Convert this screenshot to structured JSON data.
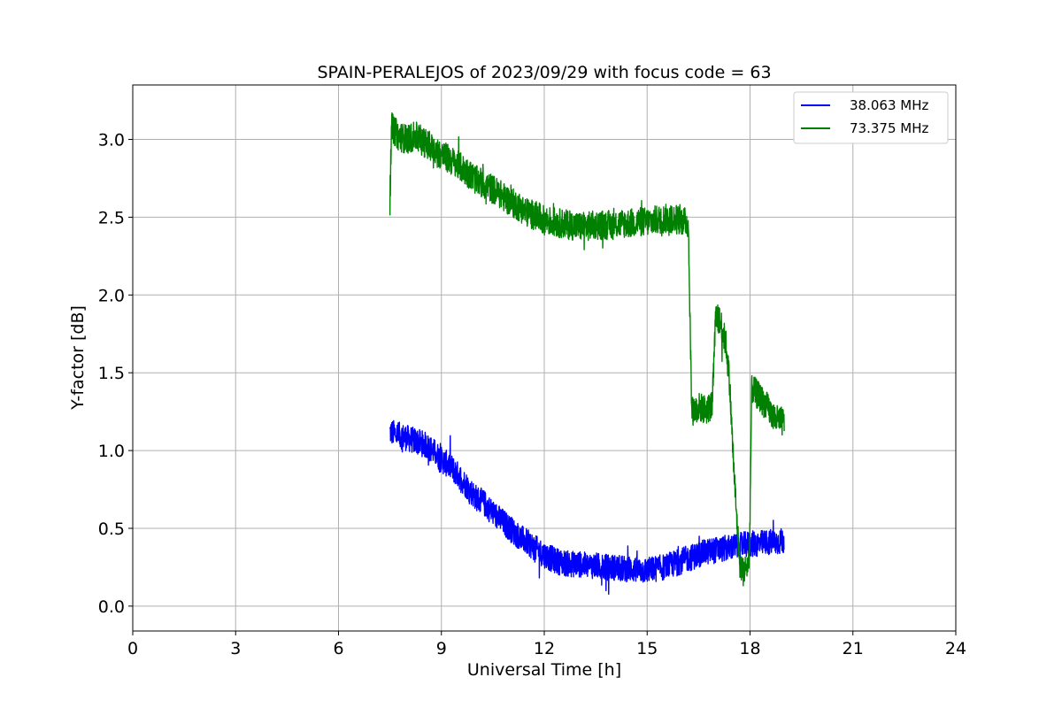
{
  "chart_data": {
    "type": "line",
    "title": "SPAIN-PERALEJOS of 2023/09/29 with focus code = 63",
    "xlabel": "Universal Time [h]",
    "ylabel": "Y-factor [dB]",
    "xlim": [
      0,
      24
    ],
    "ylim": [
      -0.16,
      3.35
    ],
    "xticks": [
      0,
      3,
      6,
      9,
      12,
      15,
      18,
      21,
      24
    ],
    "xtick_labels": [
      "0",
      "3",
      "6",
      "9",
      "12",
      "15",
      "18",
      "21",
      "24"
    ],
    "yticks": [
      0.0,
      0.5,
      1.0,
      1.5,
      2.0,
      2.5,
      3.0
    ],
    "ytick_labels": [
      "0.0",
      "0.5",
      "1.0",
      "1.5",
      "2.0",
      "2.5",
      "3.0"
    ],
    "grid": true,
    "legend_position": "top-right",
    "series": [
      {
        "name": "38.063 MHz",
        "color": "#0000ff",
        "points": [
          [
            7.5,
            1.12
          ],
          [
            7.75,
            1.1
          ],
          [
            8.0,
            1.08
          ],
          [
            8.25,
            1.06
          ],
          [
            8.5,
            1.04
          ],
          [
            8.75,
            1.0
          ],
          [
            9.0,
            0.94
          ],
          [
            9.25,
            0.9
          ],
          [
            9.5,
            0.84
          ],
          [
            9.75,
            0.77
          ],
          [
            10.0,
            0.7
          ],
          [
            10.25,
            0.66
          ],
          [
            10.5,
            0.6
          ],
          [
            10.75,
            0.55
          ],
          [
            11.0,
            0.5
          ],
          [
            11.25,
            0.45
          ],
          [
            11.5,
            0.41
          ],
          [
            11.75,
            0.37
          ],
          [
            12.0,
            0.33
          ],
          [
            12.25,
            0.3
          ],
          [
            12.5,
            0.28
          ],
          [
            12.75,
            0.27
          ],
          [
            13.0,
            0.27
          ],
          [
            13.25,
            0.26
          ],
          [
            13.5,
            0.26
          ],
          [
            13.75,
            0.25
          ],
          [
            14.0,
            0.25
          ],
          [
            14.25,
            0.24
          ],
          [
            14.5,
            0.24
          ],
          [
            14.75,
            0.23
          ],
          [
            15.0,
            0.23
          ],
          [
            15.25,
            0.24
          ],
          [
            15.5,
            0.25
          ],
          [
            15.75,
            0.27
          ],
          [
            16.0,
            0.29
          ],
          [
            16.25,
            0.31
          ],
          [
            16.5,
            0.33
          ],
          [
            16.75,
            0.35
          ],
          [
            17.0,
            0.36
          ],
          [
            17.25,
            0.37
          ],
          [
            17.5,
            0.38
          ],
          [
            17.75,
            0.39
          ],
          [
            18.0,
            0.4
          ],
          [
            18.25,
            0.4
          ],
          [
            18.5,
            0.41
          ],
          [
            18.75,
            0.41
          ],
          [
            19.0,
            0.42
          ]
        ],
        "noise_amplitude": 0.085
      },
      {
        "name": "73.375 MHz",
        "color": "#008000",
        "points": [
          [
            7.5,
            2.62
          ],
          [
            7.55,
            3.08
          ],
          [
            7.75,
            3.02
          ],
          [
            8.0,
            3.0
          ],
          [
            8.25,
            3.02
          ],
          [
            8.5,
            2.98
          ],
          [
            8.75,
            2.94
          ],
          [
            9.0,
            2.9
          ],
          [
            9.25,
            2.87
          ],
          [
            9.5,
            2.83
          ],
          [
            9.75,
            2.79
          ],
          [
            10.0,
            2.74
          ],
          [
            10.25,
            2.71
          ],
          [
            10.5,
            2.68
          ],
          [
            10.75,
            2.64
          ],
          [
            11.0,
            2.6
          ],
          [
            11.25,
            2.57
          ],
          [
            11.5,
            2.53
          ],
          [
            11.75,
            2.51
          ],
          [
            12.0,
            2.48
          ],
          [
            12.25,
            2.47
          ],
          [
            12.5,
            2.46
          ],
          [
            12.75,
            2.45
          ],
          [
            13.0,
            2.44
          ],
          [
            13.25,
            2.44
          ],
          [
            13.5,
            2.45
          ],
          [
            13.75,
            2.45
          ],
          [
            14.0,
            2.45
          ],
          [
            14.25,
            2.46
          ],
          [
            14.5,
            2.46
          ],
          [
            14.75,
            2.47
          ],
          [
            15.0,
            2.47
          ],
          [
            15.25,
            2.48
          ],
          [
            15.5,
            2.49
          ],
          [
            15.75,
            2.49
          ],
          [
            16.0,
            2.48
          ],
          [
            16.2,
            2.46
          ],
          [
            16.3,
            1.25
          ],
          [
            16.5,
            1.28
          ],
          [
            16.75,
            1.26
          ],
          [
            16.9,
            1.3
          ],
          [
            17.0,
            1.86
          ],
          [
            17.15,
            1.82
          ],
          [
            17.3,
            1.68
          ],
          [
            17.4,
            1.45
          ],
          [
            17.5,
            1.0
          ],
          [
            17.6,
            0.6
          ],
          [
            17.7,
            0.28
          ],
          [
            17.8,
            0.22
          ],
          [
            17.9,
            0.25
          ],
          [
            17.98,
            0.3
          ],
          [
            18.05,
            1.4
          ],
          [
            18.25,
            1.35
          ],
          [
            18.5,
            1.28
          ],
          [
            18.75,
            1.2
          ],
          [
            19.0,
            1.18
          ]
        ],
        "noise_amplitude": 0.095
      }
    ]
  }
}
